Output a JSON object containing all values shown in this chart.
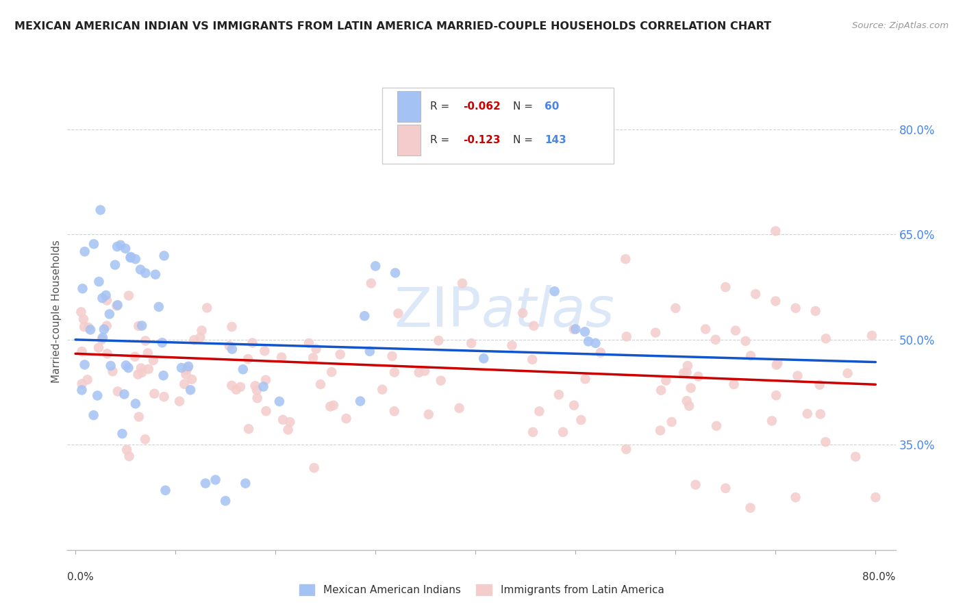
{
  "title": "MEXICAN AMERICAN INDIAN VS IMMIGRANTS FROM LATIN AMERICA MARRIED-COUPLE HOUSEHOLDS CORRELATION CHART",
  "source": "Source: ZipAtlas.com",
  "ylabel": "Married-couple Households",
  "legend_label1": "Mexican American Indians",
  "legend_label2": "Immigrants from Latin America",
  "R1": -0.062,
  "N1": 60,
  "R2": -0.123,
  "N2": 143,
  "color_blue": "#a4c2f4",
  "color_pink": "#f4cccc",
  "color_blue_line": "#1155cc",
  "color_pink_line": "#cc0000",
  "color_title": "#222222",
  "color_source": "#999999",
  "color_ytick": "#4a86e8",
  "background_color": "#ffffff",
  "grid_color": "#cccccc",
  "watermark_text": "ZIPAtlas",
  "watermark_color": "#dce8f8",
  "ytick_values": [
    0.35,
    0.5,
    0.65,
    0.8
  ],
  "ytick_labels": [
    "35.0%",
    "50.0%",
    "65.0%",
    "80.0%"
  ],
  "xlim": [
    0.0,
    0.8
  ],
  "ylim": [
    0.2,
    0.88
  ]
}
